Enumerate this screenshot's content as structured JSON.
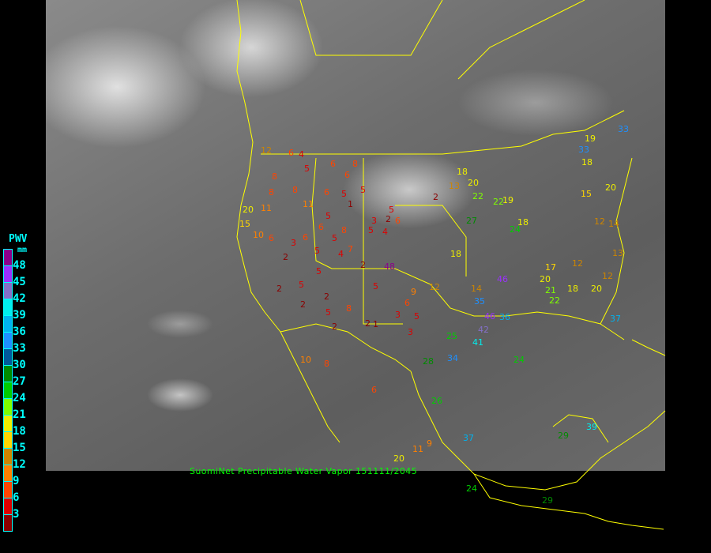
{
  "caption": "SuomiNet Precipitable Water Vapor 151111/2045",
  "legend": {
    "title": "PWV",
    "unit": "mm",
    "labels": [
      "48",
      "45",
      "42",
      "39",
      "36",
      "33",
      "30",
      "27",
      "24",
      "21",
      "18",
      "15",
      "12",
      "9",
      "6",
      "3"
    ],
    "colors": [
      "#8b008b",
      "#9b30ff",
      "#8470c8",
      "#00eeee",
      "#00b2ee",
      "#1e90ff",
      "#005a9c",
      "#008b00",
      "#00cd00",
      "#7fff00",
      "#eeee00",
      "#ffd700",
      "#cd8500",
      "#ff8000",
      "#ff4500",
      "#dd0000",
      "#8b0000"
    ]
  },
  "border_color": "#ffff00",
  "stations": [
    "12",
    "6",
    "4",
    "8",
    "5",
    "6",
    "6",
    "8",
    "6",
    "5",
    "1",
    "5",
    "5",
    "3",
    "2",
    "6",
    "8",
    "8",
    "11",
    "11",
    "20",
    "15",
    "10",
    "6",
    "3",
    "6",
    "5",
    "6",
    "8",
    "5",
    "2",
    "5",
    "4",
    "7",
    "5",
    "4",
    "2",
    "48",
    "5",
    "5",
    "2",
    "5",
    "2",
    "2",
    "8",
    "3",
    "2",
    "1",
    "5",
    "2",
    "3",
    "5",
    "6",
    "10",
    "8",
    "6",
    "18",
    "20",
    "13",
    "2",
    "22",
    "27",
    "22",
    "19",
    "18",
    "24",
    "15",
    "20",
    "18",
    "33",
    "19",
    "33",
    "12",
    "14",
    "13",
    "12",
    "17",
    "18",
    "20",
    "12",
    "20",
    "21",
    "22",
    "24",
    "26",
    "25",
    "34",
    "37",
    "35",
    "46",
    "36",
    "42",
    "28",
    "18",
    "14",
    "46",
    "12",
    "9",
    "11",
    "9",
    "20",
    "24",
    "29",
    "37",
    "29",
    "39",
    "41"
  ]
}
